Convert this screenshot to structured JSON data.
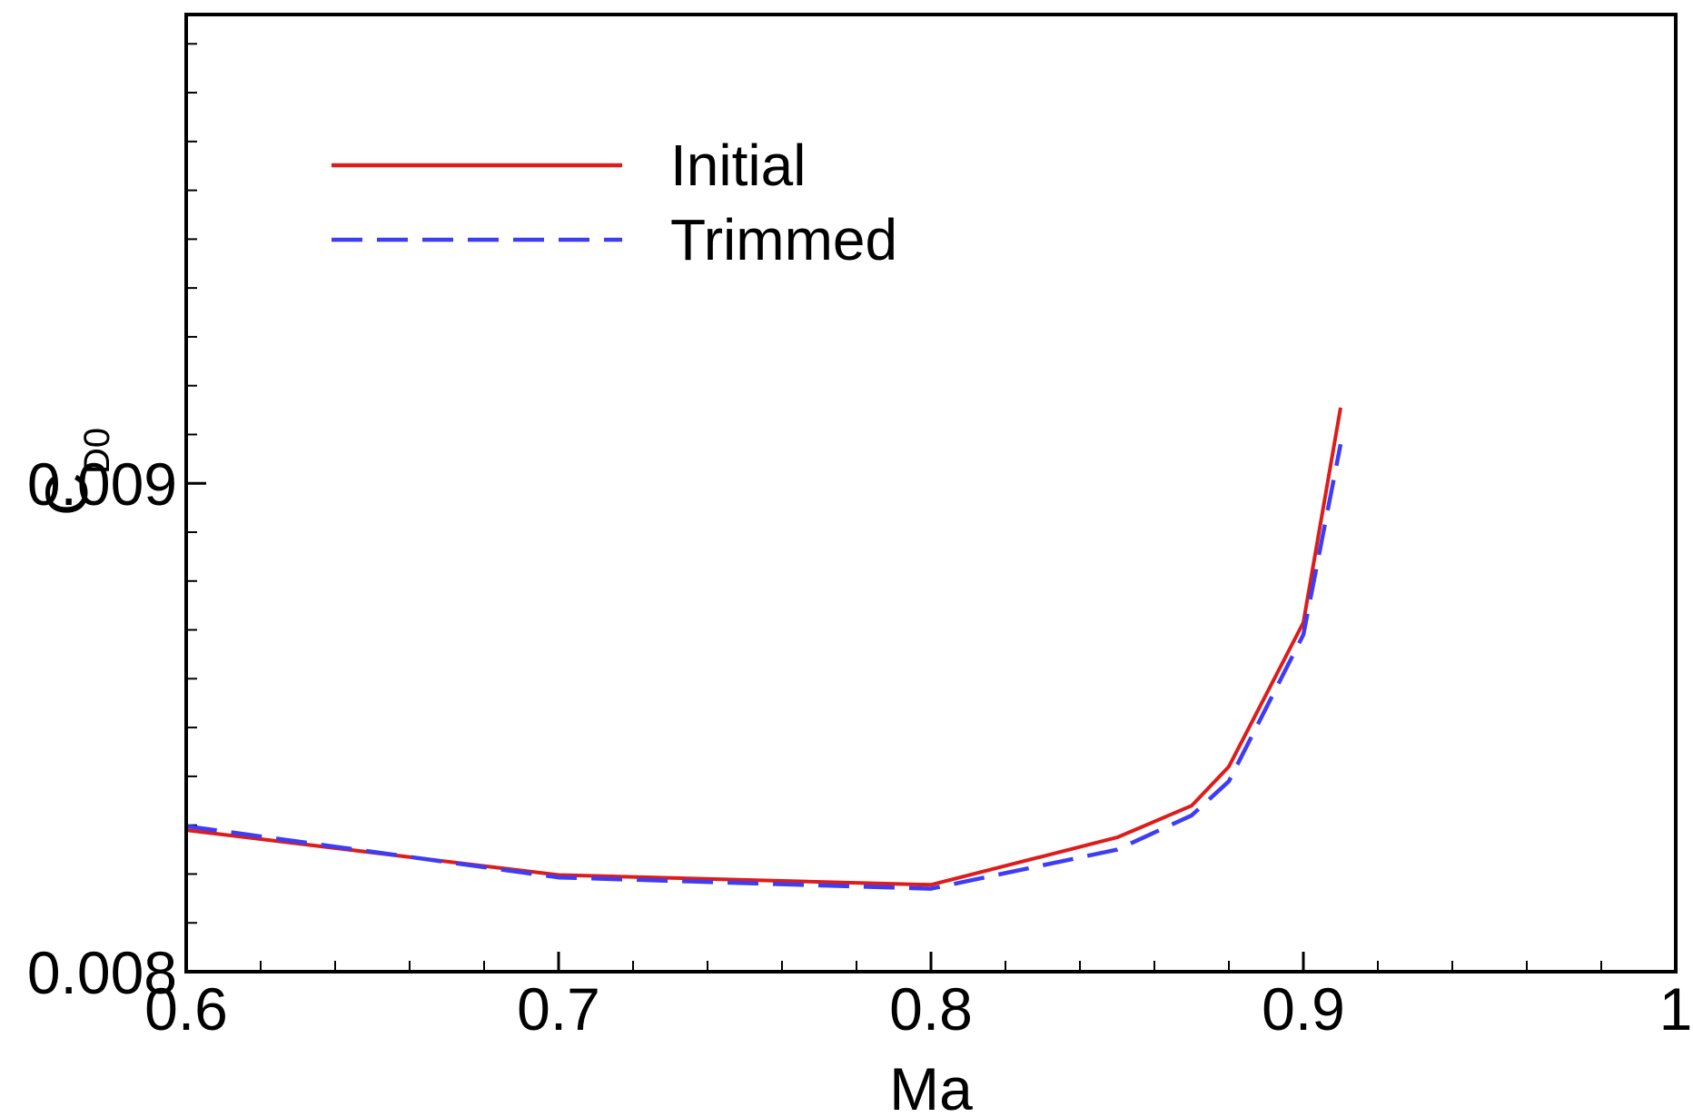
{
  "chart_data": {
    "type": "line",
    "title": "",
    "xlabel": "Ma",
    "ylabel": {
      "main": "C",
      "subscript": "D0"
    },
    "xlim": [
      0.6,
      1.0
    ],
    "ylim": [
      0.008,
      0.00996
    ],
    "xticks": [
      0.6,
      0.7,
      0.8,
      0.9,
      1.0
    ],
    "xtick_labels": [
      "0.6",
      "0.7",
      "0.8",
      "0.9",
      "1"
    ],
    "x_minor_step": 0.02,
    "yticks": [
      0.008,
      0.009
    ],
    "ytick_labels": [
      "0.008",
      "0.009"
    ],
    "y_minor_step": 0.0001,
    "grid": false,
    "legend": {
      "placement": "top-left"
    },
    "series": [
      {
        "name": "Initial",
        "color": "#dd1c1c",
        "dash": "solid",
        "x": [
          0.6,
          0.7,
          0.8,
          0.85,
          0.87,
          0.88,
          0.9,
          0.91
        ],
        "y": [
          0.00829,
          0.008198,
          0.008178,
          0.008275,
          0.00834,
          0.00842,
          0.008715,
          0.009155
        ]
      },
      {
        "name": "Trimmed",
        "color": "#3d3df5",
        "dash": "dashed",
        "x": [
          0.6,
          0.7,
          0.8,
          0.85,
          0.87,
          0.88,
          0.9,
          0.91
        ],
        "y": [
          0.008298,
          0.008193,
          0.00817,
          0.00825,
          0.00832,
          0.00839,
          0.00869,
          0.00908
        ]
      }
    ]
  }
}
